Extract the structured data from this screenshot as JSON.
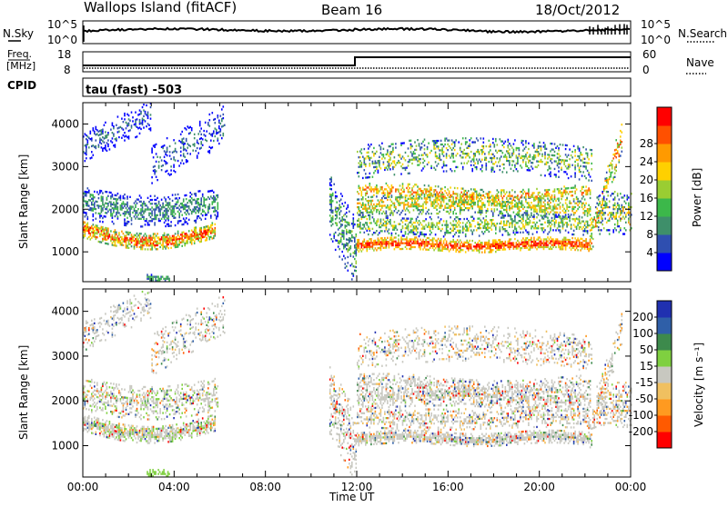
{
  "header": {
    "station": "Wallops Island (fitACF)",
    "beam": "Beam 16",
    "date": "18/Oct/2012"
  },
  "sky_strip": {
    "left_label": "N.Sky",
    "right_label": "N.Search",
    "left_ticks": [
      "10^5",
      "10^0"
    ],
    "right_ticks": [
      "10^5",
      "10^0"
    ]
  },
  "freq_strip": {
    "left_label_top": "Freq.",
    "left_label_unit": "[MHz]",
    "left_ticks": [
      "18",
      "8"
    ],
    "right_label": "Nave",
    "right_ticks": [
      "60",
      "0"
    ],
    "cpid_label": "CPID",
    "cpid_text": "tau (fast) -503"
  },
  "colors": {
    "power": [
      "#0000ff",
      "#2f4fb0",
      "#3e8f6a",
      "#3cb84a",
      "#9acd32",
      "#ffd000",
      "#ff9a00",
      "#ff5000",
      "#ff0000"
    ],
    "velocity": [
      "#2030b0",
      "#2f5fa8",
      "#3d8a4c",
      "#7fd040",
      "#c8c8c0",
      "#f0c060",
      "#ff9a20",
      "#ff5a00",
      "#ff0000"
    ]
  },
  "chart_data": [
    {
      "type": "heatmap",
      "title": "",
      "xlabel": "",
      "ylabel": "Slant Range [km]",
      "xlim": [
        0,
        24
      ],
      "ylim": [
        300,
        4500
      ],
      "yticks": [
        "1000",
        "2000",
        "3000",
        "4000"
      ],
      "colorbar": {
        "label": "Power [dB]",
        "ticks": [
          "4",
          "8",
          "12",
          "16",
          "20",
          "24",
          "28"
        ]
      }
    },
    {
      "type": "heatmap",
      "title": "",
      "xlabel": "Time UT",
      "ylabel": "Slant Range [km]",
      "xlim": [
        0,
        24
      ],
      "ylim": [
        300,
        4500
      ],
      "xticks": [
        "00:00",
        "04:00",
        "08:00",
        "12:00",
        "16:00",
        "20:00",
        "00:00"
      ],
      "yticks": [
        "1000",
        "2000",
        "3000",
        "4000"
      ],
      "colorbar": {
        "label": "Velocity [m s⁻¹]",
        "ticks": [
          "200",
          "100",
          "50",
          "15",
          "-15",
          "-50",
          "-100",
          "-200"
        ]
      }
    }
  ]
}
